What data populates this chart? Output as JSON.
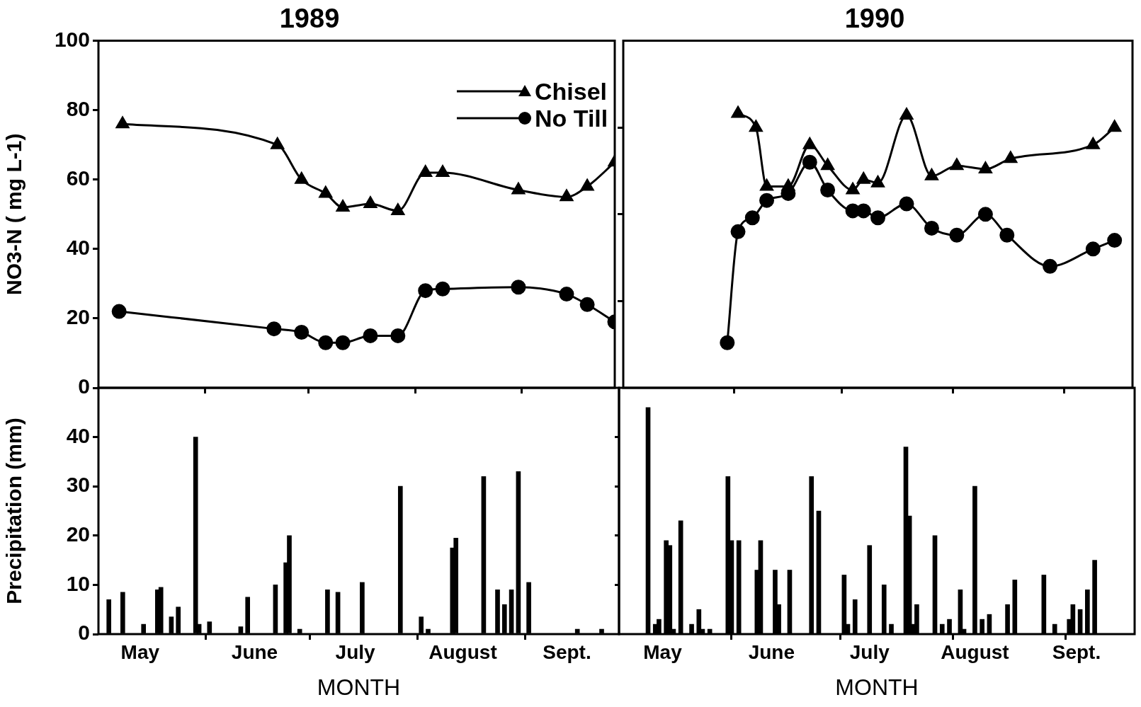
{
  "chart_data": [
    {
      "type": "line",
      "title": "1989",
      "ylabel": "NO3-N ( mg L-1)",
      "xlim": [
        "--05-01",
        "--09-28"
      ],
      "xticks": [
        {
          "value": "--06-01",
          "label": null
        },
        {
          "value": "--07-01",
          "label": null
        },
        {
          "value": "--08-01",
          "label": null
        },
        {
          "value": "--09-01",
          "label": null
        }
      ],
      "ylim": [
        0,
        100
      ],
      "yticks": [
        0,
        20,
        40,
        60,
        80,
        100
      ],
      "tick_labels": "y",
      "legend": "top right",
      "grid": false,
      "line_style": "solid",
      "series": [
        {
          "name": "Chisel",
          "color": "#000000",
          "marker": "triangle",
          "x": [
            "--05-08",
            "--06-22",
            "--06-29",
            "--07-06",
            "--07-11",
            "--07-19",
            "--07-27",
            "--08-04",
            "--08-09",
            "--08-31",
            "--09-14",
            "--09-20",
            "--09-28"
          ],
          "values": [
            76,
            70,
            60,
            56,
            52,
            53,
            51,
            62,
            62,
            57,
            55,
            58,
            65
          ]
        },
        {
          "name": "No Till",
          "color": "#000000",
          "marker": "circle",
          "x": [
            "--05-07",
            "--06-21",
            "--06-29",
            "--07-06",
            "--07-11",
            "--07-19",
            "--07-27",
            "--08-04",
            "--08-09",
            "--08-31",
            "--09-14",
            "--09-20",
            "--09-28"
          ],
          "values": [
            22,
            17,
            16,
            13,
            13,
            15,
            15,
            28,
            28.5,
            29,
            27,
            24,
            19
          ]
        }
      ]
    },
    {
      "type": "line",
      "title": "1990",
      "xlim": [
        "--05-01",
        "--09-20"
      ],
      "xticks": [
        {
          "value": "--06-01",
          "label": null
        },
        {
          "value": "--07-01",
          "label": null
        },
        {
          "value": "--08-01",
          "label": null
        },
        {
          "value": "--09-01",
          "label": null
        }
      ],
      "ylim": [
        0,
        100
      ],
      "yticks": [
        25,
        50,
        75
      ],
      "tick_labels": false,
      "legend": false,
      "grid": false,
      "line_style": "solid",
      "series": [
        {
          "color": "#000000",
          "marker": "triangle",
          "x": [
            "--06-02",
            "--06-07",
            "--06-10",
            "--06-16",
            "--06-22",
            "--06-27",
            "--07-04",
            "--07-07",
            "--07-11",
            "--07-19",
            "--07-26",
            "--08-02",
            "--08-10",
            "--08-17",
            "--09-09",
            "--09-15"
          ],
          "values": [
            79,
            75,
            58,
            58,
            70,
            64,
            57,
            60,
            59,
            78.5,
            61,
            64,
            63,
            66,
            70,
            75
          ]
        },
        {
          "color": "#000000",
          "marker": "circle",
          "x": [
            "--05-30",
            "--06-02",
            "--06-06",
            "--06-10",
            "--06-16",
            "--06-22",
            "--06-27",
            "--07-04",
            "--07-07",
            "--07-11",
            "--07-19",
            "--07-26",
            "--08-02",
            "--08-10",
            "--08-16",
            "--08-28",
            "--09-09",
            "--09-15"
          ],
          "values": [
            13,
            45,
            49,
            54,
            56,
            65,
            57,
            51,
            51,
            49,
            53,
            46,
            44,
            50,
            44,
            35,
            40,
            42.5
          ]
        }
      ]
    },
    {
      "type": "bar",
      "ylabel": "Precipitation (mm)",
      "xlabel": "MONTH",
      "xlim": [
        "--05-01",
        "--09-28"
      ],
      "xticks": [
        {
          "value": "--05-13",
          "label": "May"
        },
        {
          "value": "--06-01",
          "label": null
        },
        {
          "value": "--06-15",
          "label": "June"
        },
        {
          "value": "--07-01",
          "label": null
        },
        {
          "value": "--07-14",
          "label": "July"
        },
        {
          "value": "--08-01",
          "label": null
        },
        {
          "value": "--08-14",
          "label": "August"
        },
        {
          "value": "--09-01",
          "label": null
        },
        {
          "value": "--09-13",
          "label": "Sept."
        }
      ],
      "ylim": [
        0,
        50
      ],
      "yticks": [
        0,
        10,
        20,
        30,
        40
      ],
      "grid": false,
      "color": "#000000",
      "x": [
        "--05-04",
        "--05-08",
        "--05-14",
        "--05-18",
        "--05-19",
        "--05-22",
        "--05-24",
        "--05-29",
        "--05-30",
        "--06-02",
        "--06-11",
        "--06-13",
        "--06-21",
        "--06-24",
        "--06-25",
        "--06-28",
        "--07-06",
        "--07-09",
        "--07-16",
        "--07-27",
        "--08-02",
        "--08-04",
        "--08-11",
        "--08-12",
        "--08-20",
        "--08-24",
        "--08-26",
        "--08-28",
        "--08-30",
        "--09-02",
        "--09-16",
        "--09-23"
      ],
      "values": [
        7,
        8.5,
        2,
        9,
        9.5,
        3.5,
        5.5,
        40,
        2,
        2.5,
        1.5,
        7.5,
        10,
        14.5,
        20,
        1,
        9,
        8.5,
        10.5,
        30,
        3.5,
        1,
        17.5,
        19.5,
        32,
        9,
        6,
        9,
        33,
        10.5,
        1,
        1
      ]
    },
    {
      "type": "bar",
      "xlabel": "MONTH",
      "xlim": [
        "--05-01",
        "--09-20"
      ],
      "xticks": [
        {
          "value": "--05-13",
          "label": "May"
        },
        {
          "value": "--06-01",
          "label": null
        },
        {
          "value": "--06-12",
          "label": "June"
        },
        {
          "value": "--07-01",
          "label": null
        },
        {
          "value": "--07-09",
          "label": "July"
        },
        {
          "value": "--08-01",
          "label": null
        },
        {
          "value": "--08-07",
          "label": "August"
        },
        {
          "value": "--09-01",
          "label": null
        },
        {
          "value": "--09-04",
          "label": "Sept."
        }
      ],
      "ylim": [
        0,
        50
      ],
      "yticks": [
        10,
        20,
        30,
        40
      ],
      "tick_labels": "x",
      "grid": false,
      "color": "#000000",
      "x": [
        "--05-09",
        "--05-11",
        "--05-12",
        "--05-14",
        "--05-15",
        "--05-16",
        "--05-18",
        "--05-21",
        "--05-23",
        "--05-24",
        "--05-26",
        "--05-31",
        "--06-01",
        "--06-03",
        "--06-08",
        "--06-09",
        "--06-13",
        "--06-14",
        "--06-17",
        "--06-23",
        "--06-25",
        "--07-02",
        "--07-03",
        "--07-05",
        "--07-09",
        "--07-13",
        "--07-15",
        "--07-19",
        "--07-20",
        "--07-21",
        "--07-22",
        "--07-27",
        "--07-29",
        "--07-31",
        "--08-03",
        "--08-04",
        "--08-07",
        "--08-09",
        "--08-11",
        "--08-16",
        "--08-18",
        "--08-26",
        "--08-29",
        "--09-02",
        "--09-03",
        "--09-05",
        "--09-07",
        "--09-09"
      ],
      "values": [
        46,
        2,
        3,
        19,
        18,
        1,
        23,
        2,
        5,
        1,
        1,
        32,
        19,
        19,
        13,
        19,
        13,
        6,
        13,
        32,
        25,
        12,
        2,
        7,
        18,
        10,
        2,
        38,
        24,
        2,
        6,
        20,
        2,
        3,
        9,
        1,
        30,
        3,
        4,
        6,
        11,
        12,
        2,
        3,
        6,
        5,
        9,
        15
      ]
    }
  ]
}
